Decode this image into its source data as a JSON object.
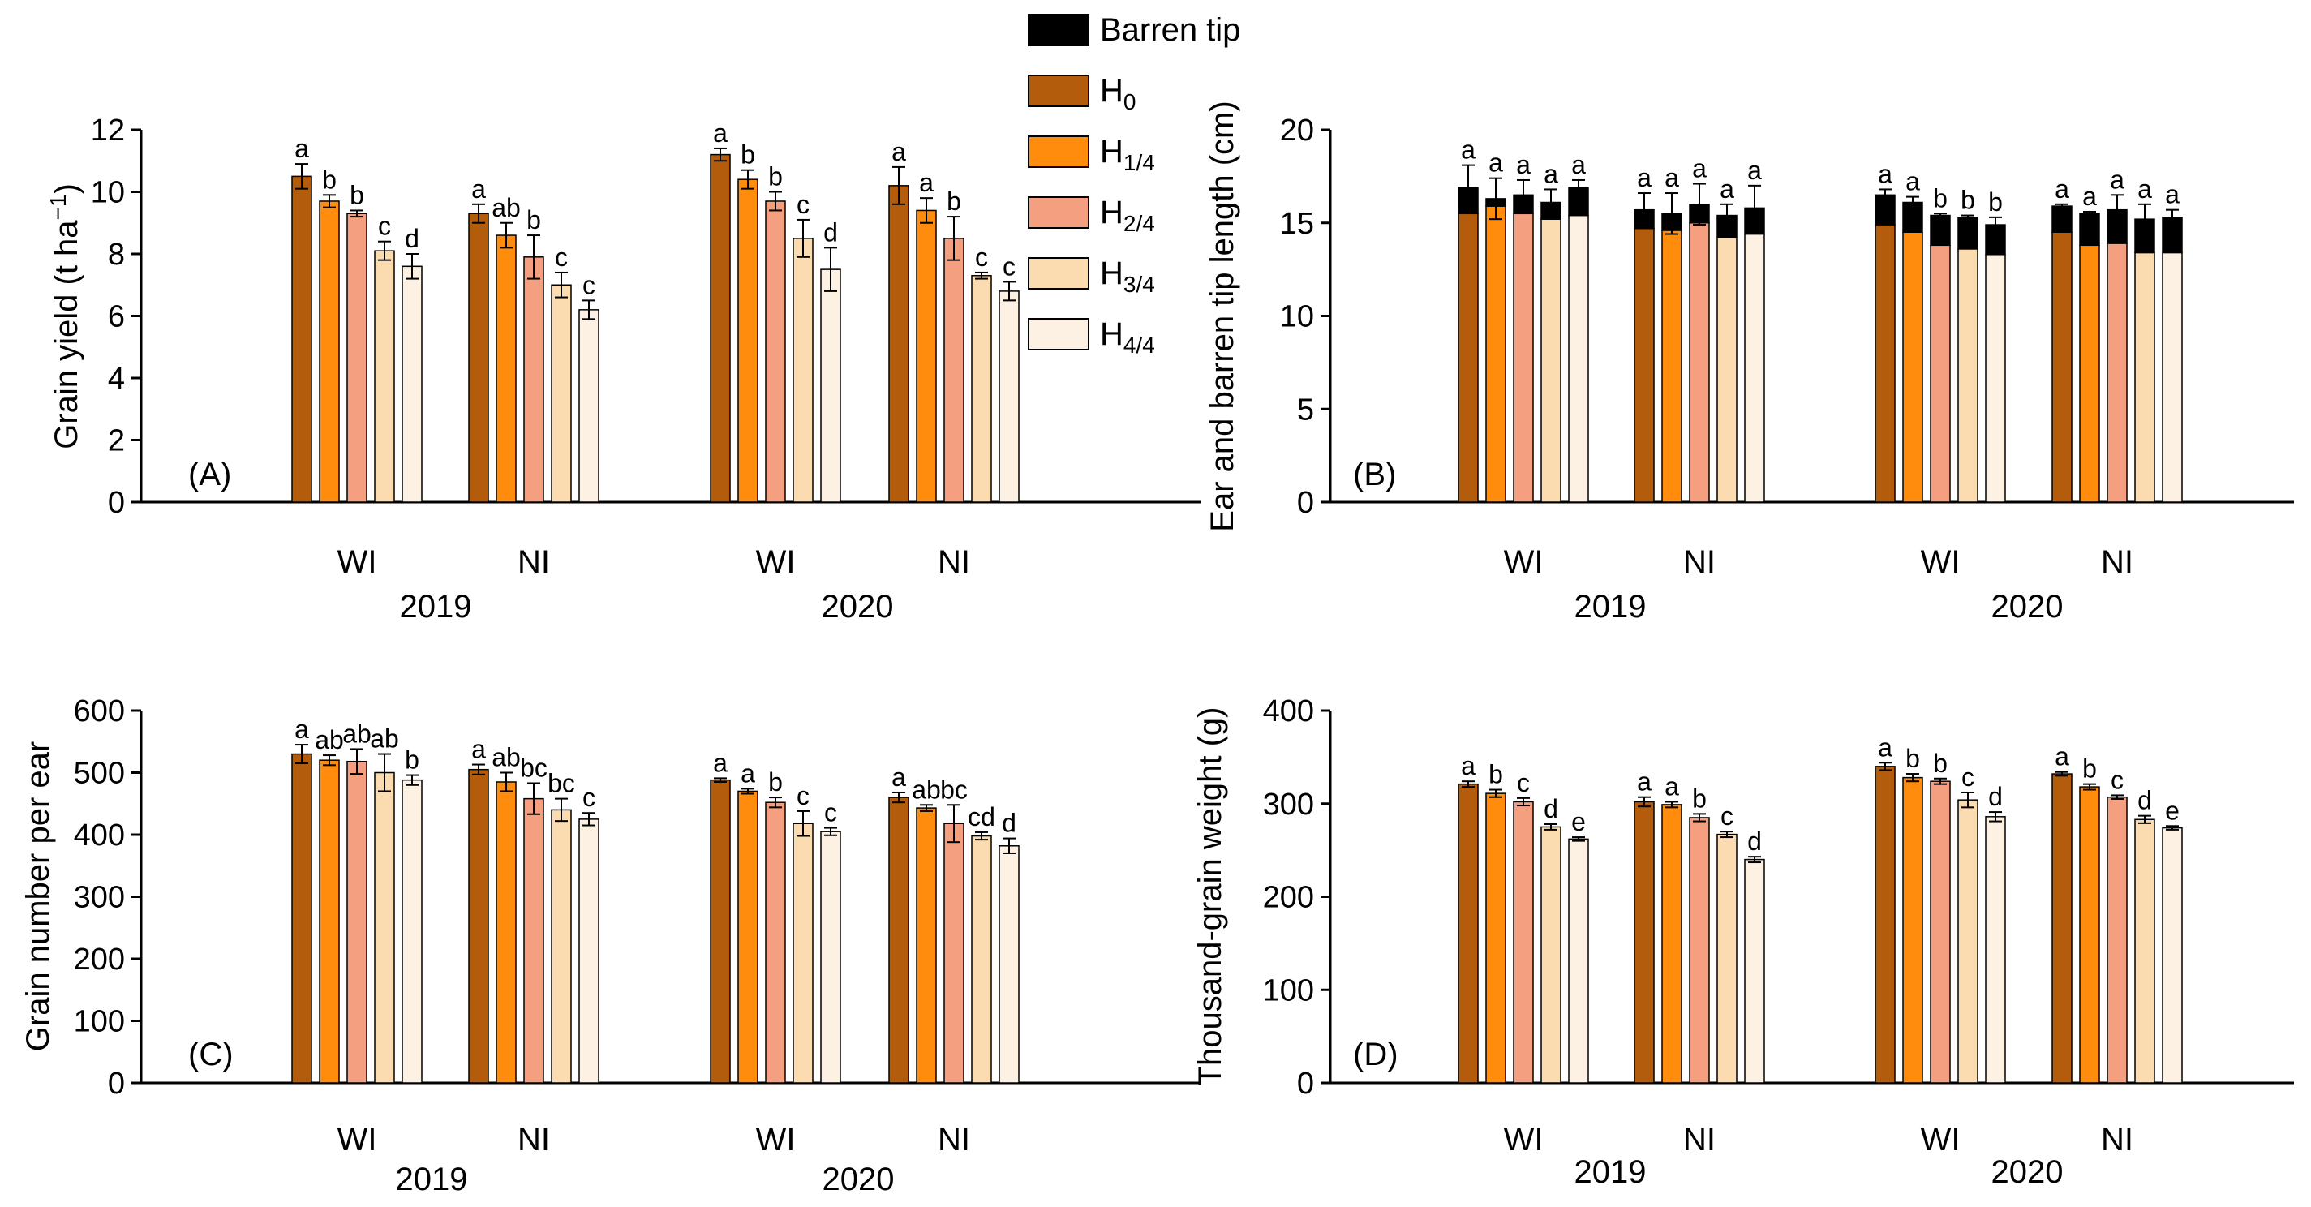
{
  "legend": {
    "entries": [
      {
        "key": "barren",
        "label": "Barren tip",
        "color": "#000000"
      },
      {
        "key": "H0",
        "label": "H",
        "sub": "0",
        "color": "#b35c0c"
      },
      {
        "key": "H14",
        "label": "H",
        "sub": "1/4",
        "color": "#ff8c0d"
      },
      {
        "key": "H24",
        "label": "H",
        "sub": "2/4",
        "color": "#f4a080"
      },
      {
        "key": "H34",
        "label": "H",
        "sub": "3/4",
        "color": "#fbdcb0"
      },
      {
        "key": "H44",
        "label": "H",
        "sub": "4/4",
        "color": "#fcf1e3"
      }
    ]
  },
  "groups": [
    "WI",
    "NI",
    "WI",
    "NI"
  ],
  "years": [
    "2019",
    "2020"
  ],
  "chart_data": [
    {
      "id": "A",
      "type": "bar",
      "panel_label": "(A)",
      "ylabel": "Grain yield (t ha",
      "ylabel_sup": "−1",
      "ylabel_end": ")",
      "ylim": [
        0,
        12
      ],
      "yticks": [
        0,
        2,
        4,
        6,
        8,
        10,
        12
      ],
      "categories": [
        "2019 WI",
        "2019 NI",
        "2020 WI",
        "2020 NI"
      ],
      "series_names": [
        "H0",
        "H1/4",
        "H2/4",
        "H3/4",
        "H4/4"
      ],
      "values": [
        [
          10.5,
          9.7,
          9.3,
          8.1,
          7.6
        ],
        [
          9.3,
          8.6,
          7.9,
          7.0,
          6.2
        ],
        [
          11.2,
          10.4,
          9.7,
          8.5,
          7.5
        ],
        [
          10.2,
          9.4,
          8.5,
          7.3,
          6.8
        ]
      ],
      "errors": [
        [
          0.4,
          0.2,
          0.1,
          0.3,
          0.4
        ],
        [
          0.3,
          0.4,
          0.7,
          0.4,
          0.3
        ],
        [
          0.2,
          0.3,
          0.3,
          0.6,
          0.7
        ],
        [
          0.6,
          0.4,
          0.7,
          0.1,
          0.3
        ]
      ],
      "letters": [
        [
          "a",
          "b",
          "b",
          "c",
          "d"
        ],
        [
          "a",
          "ab",
          "b",
          "c",
          "c"
        ],
        [
          "a",
          "b",
          "b",
          "c",
          "d"
        ],
        [
          "a",
          "a",
          "b",
          "c",
          "c"
        ]
      ]
    },
    {
      "id": "B",
      "type": "stacked-bar",
      "panel_label": "(B)",
      "ylabel": "Ear and barren tip length (cm)",
      "ylim": [
        0,
        20
      ],
      "yticks": [
        0,
        5,
        10,
        15,
        20
      ],
      "categories": [
        "2019 WI",
        "2019 NI",
        "2020 WI",
        "2020 NI"
      ],
      "series_names": [
        "H0",
        "H1/4",
        "H2/4",
        "H3/4",
        "H4/4"
      ],
      "ear_values": [
        [
          15.5,
          15.9,
          15.5,
          15.2,
          15.4
        ],
        [
          14.7,
          14.6,
          15.0,
          14.2,
          14.4
        ],
        [
          14.9,
          14.5,
          13.8,
          13.6,
          13.3
        ],
        [
          14.5,
          13.8,
          13.9,
          13.4,
          13.4
        ]
      ],
      "barren_values": [
        [
          1.4,
          0.4,
          1.0,
          0.9,
          1.5
        ],
        [
          1.0,
          0.9,
          1.0,
          1.2,
          1.4
        ],
        [
          1.6,
          1.6,
          1.6,
          1.7,
          1.6
        ],
        [
          1.4,
          1.7,
          1.8,
          1.8,
          1.9
        ]
      ],
      "errors": [
        [
          1.2,
          1.1,
          0.8,
          0.7,
          0.4
        ],
        [
          0.9,
          1.1,
          1.1,
          0.6,
          1.2
        ],
        [
          0.3,
          0.3,
          0.1,
          0.1,
          0.4
        ],
        [
          0.1,
          0.1,
          0.8,
          0.8,
          0.4
        ]
      ],
      "letters": [
        [
          "a",
          "a",
          "a",
          "a",
          "a"
        ],
        [
          "a",
          "a",
          "a",
          "a",
          "a"
        ],
        [
          "a",
          "a",
          "b",
          "b",
          "b"
        ],
        [
          "a",
          "a",
          "a",
          "a",
          "a"
        ]
      ]
    },
    {
      "id": "C",
      "type": "bar",
      "panel_label": "(C)",
      "ylabel": "Grain number per ear",
      "ylim": [
        0,
        600
      ],
      "yticks": [
        0,
        100,
        200,
        300,
        400,
        500,
        600
      ],
      "categories": [
        "2019 WI",
        "2019 NI",
        "2020 WI",
        "2020 NI"
      ],
      "series_names": [
        "H0",
        "H1/4",
        "H2/4",
        "H3/4",
        "H4/4"
      ],
      "values": [
        [
          530,
          520,
          518,
          500,
          488
        ],
        [
          505,
          485,
          458,
          440,
          425
        ],
        [
          488,
          470,
          452,
          418,
          405
        ],
        [
          460,
          443,
          418,
          398,
          382
        ]
      ],
      "errors": [
        [
          15,
          8,
          20,
          30,
          8
        ],
        [
          8,
          15,
          25,
          18,
          10
        ],
        [
          3,
          4,
          8,
          20,
          6
        ],
        [
          8,
          5,
          30,
          6,
          12
        ]
      ],
      "letters": [
        [
          "a",
          "ab",
          "ab",
          "ab",
          "b"
        ],
        [
          "a",
          "ab",
          "bc",
          "bc",
          "c"
        ],
        [
          "a",
          "a",
          "b",
          "c",
          "c"
        ],
        [
          "a",
          "ab",
          "bc",
          "cd",
          "d"
        ]
      ]
    },
    {
      "id": "D",
      "type": "bar",
      "panel_label": "(D)",
      "ylabel": "Thousand-grain weight (g)",
      "ylim": [
        0,
        400
      ],
      "yticks": [
        0,
        100,
        200,
        300,
        400
      ],
      "categories": [
        "2019 WI",
        "2019 NI",
        "2020 WI",
        "2020 NI"
      ],
      "series_names": [
        "H0",
        "H1/4",
        "H2/4",
        "H3/4",
        "H4/4"
      ],
      "values": [
        [
          321,
          311,
          302,
          275,
          262
        ],
        [
          302,
          299,
          285,
          267,
          240
        ],
        [
          340,
          328,
          324,
          304,
          286
        ],
        [
          332,
          318,
          307,
          283,
          274
        ]
      ],
      "errors": [
        [
          3,
          4,
          4,
          3,
          2
        ],
        [
          5,
          3,
          4,
          3,
          3
        ],
        [
          4,
          4,
          3,
          8,
          5
        ],
        [
          2,
          3,
          2,
          4,
          2
        ]
      ],
      "letters": [
        [
          "a",
          "b",
          "c",
          "d",
          "e"
        ],
        [
          "a",
          "a",
          "b",
          "c",
          "d"
        ],
        [
          "a",
          "b",
          "b",
          "c",
          "d"
        ],
        [
          "a",
          "b",
          "c",
          "d",
          "e"
        ]
      ]
    }
  ]
}
